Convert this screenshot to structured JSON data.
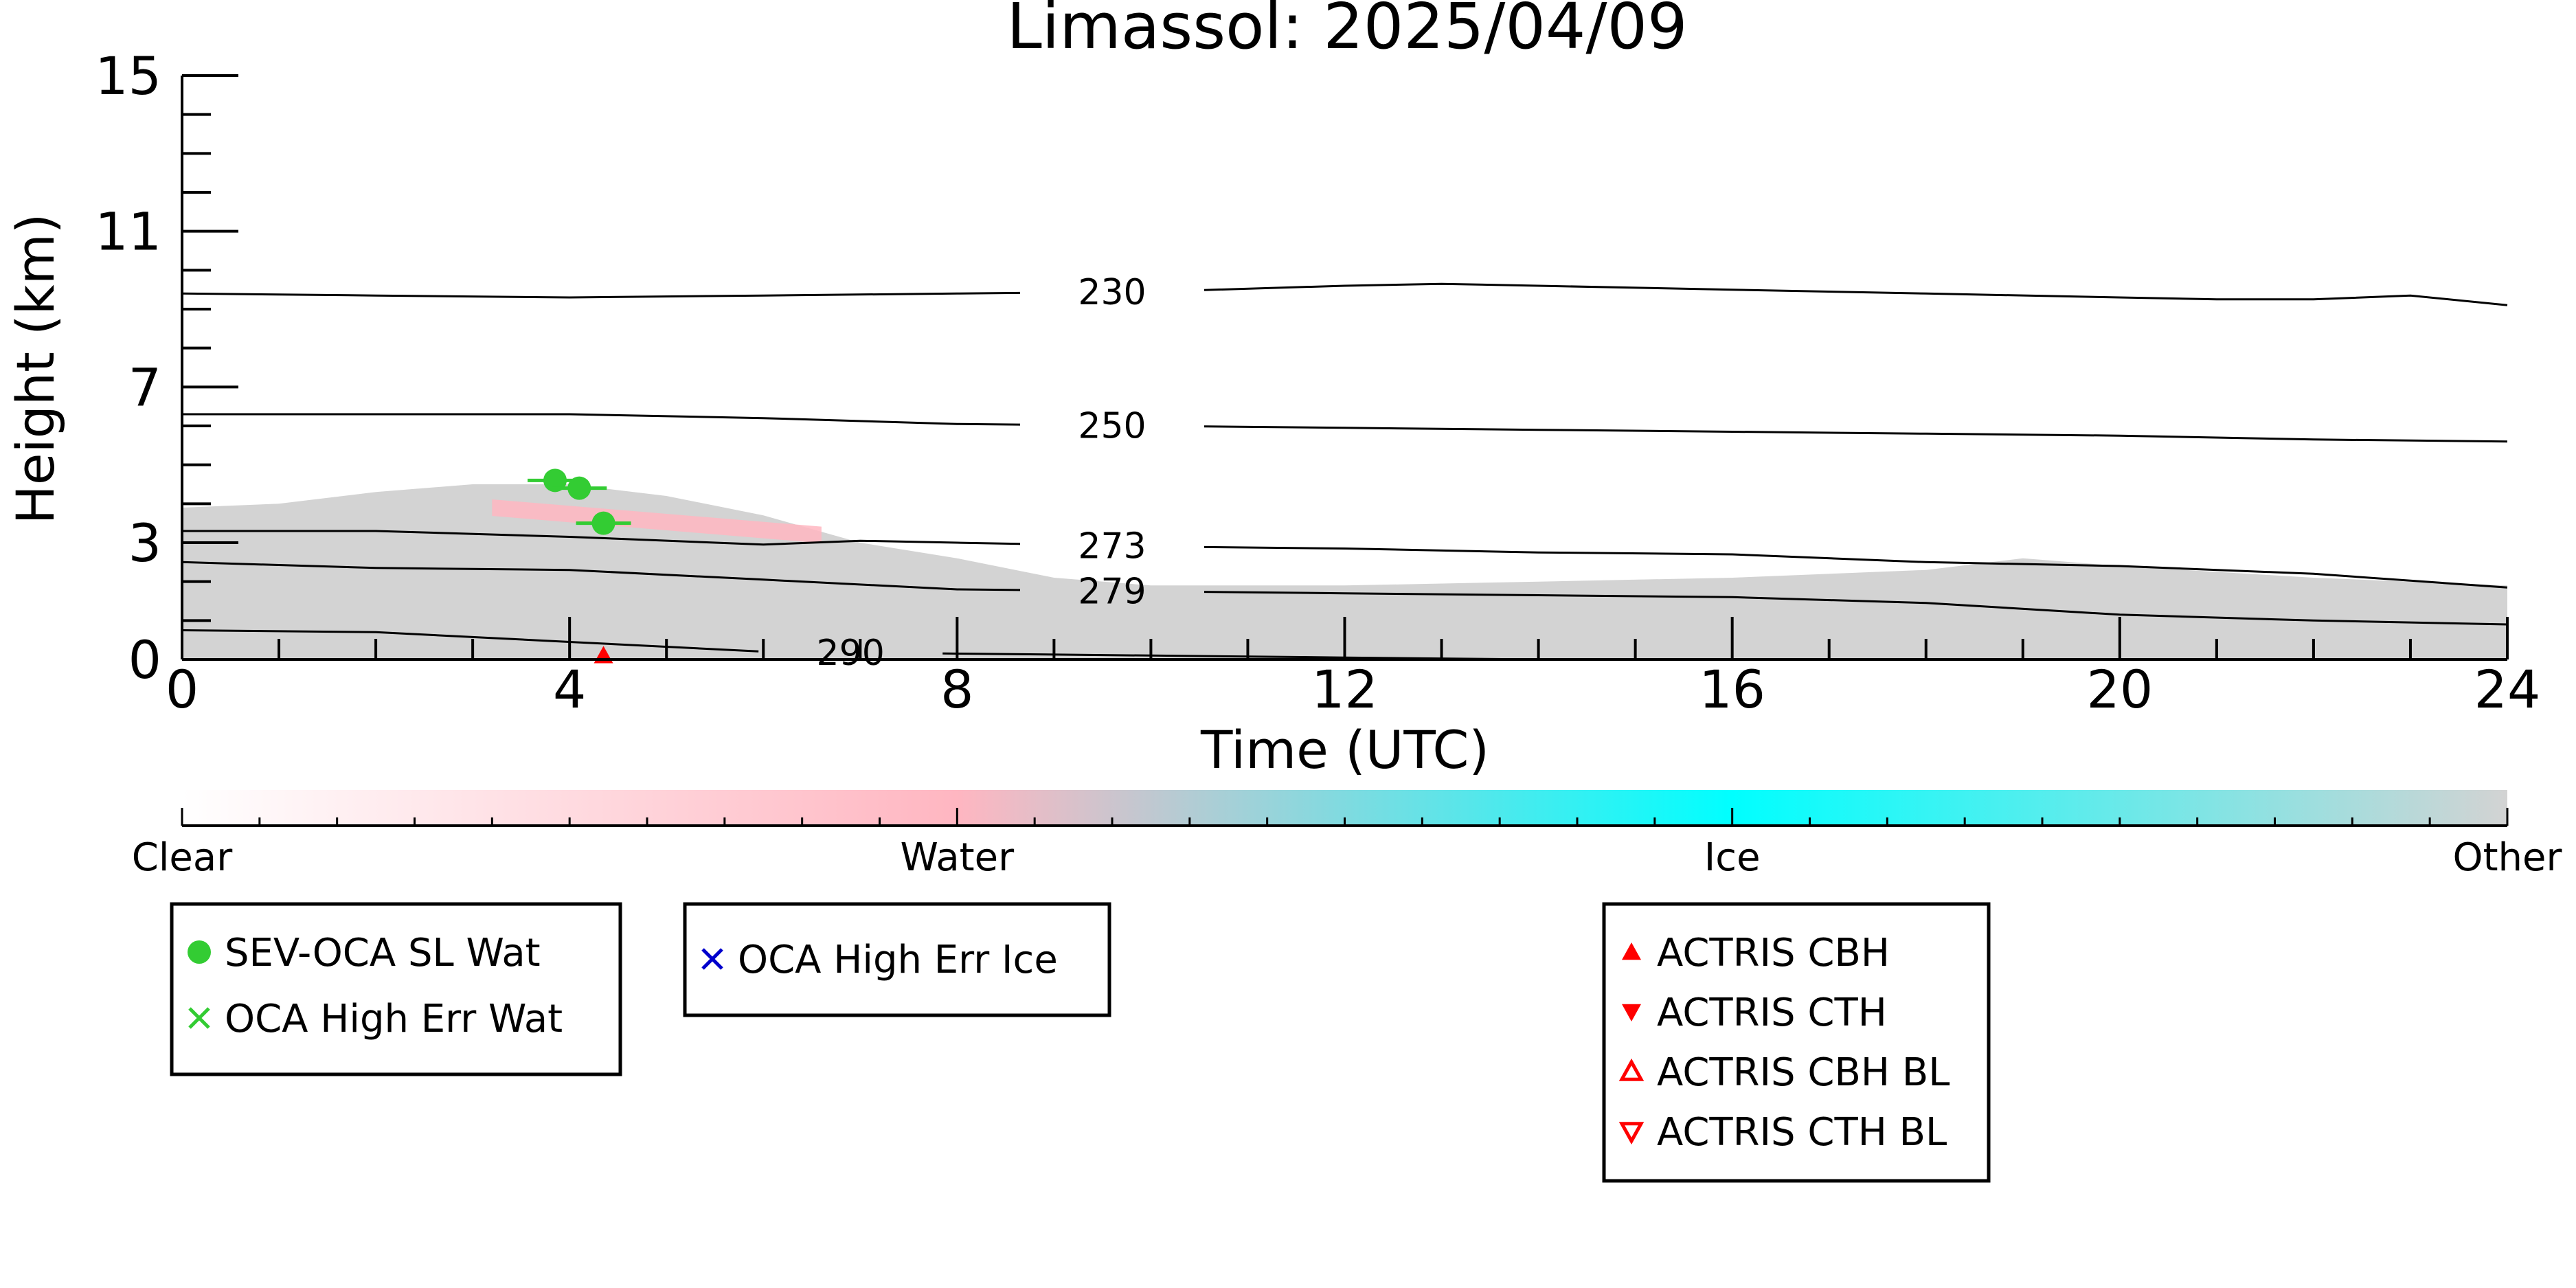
{
  "chart_data": {
    "type": "scatter",
    "title": "Limassol: 2025/04/09",
    "xlabel": "Time (UTC)",
    "ylabel": "Height (km)",
    "xlim": [
      0,
      24
    ],
    "ylim": [
      0,
      15
    ],
    "x_ticks": [
      0,
      4,
      8,
      12,
      16,
      20,
      24
    ],
    "y_ticks": [
      0,
      3,
      7,
      11,
      15
    ],
    "grid": false,
    "background_cloud_region": {
      "label": "Other",
      "color": "#d3d3d3",
      "top_profile": [
        {
          "x": 0,
          "y": 3.9
        },
        {
          "x": 1,
          "y": 4.0
        },
        {
          "x": 2,
          "y": 4.3
        },
        {
          "x": 3,
          "y": 4.5
        },
        {
          "x": 4,
          "y": 4.5
        },
        {
          "x": 5,
          "y": 4.2
        },
        {
          "x": 6,
          "y": 3.7
        },
        {
          "x": 7,
          "y": 3.0
        },
        {
          "x": 8,
          "y": 2.6
        },
        {
          "x": 9,
          "y": 2.1
        },
        {
          "x": 10,
          "y": 1.9
        },
        {
          "x": 12,
          "y": 1.9
        },
        {
          "x": 14,
          "y": 2.0
        },
        {
          "x": 16,
          "y": 2.1
        },
        {
          "x": 18,
          "y": 2.3
        },
        {
          "x": 19,
          "y": 2.6
        },
        {
          "x": 20,
          "y": 2.4
        },
        {
          "x": 22,
          "y": 2.1
        },
        {
          "x": 24,
          "y": 1.9
        }
      ]
    },
    "water_cloud_region": {
      "label": "Water",
      "color": "#ffb6c1",
      "x_range": [
        3.2,
        6.6
      ],
      "y_center": [
        3.9,
        3.2
      ]
    },
    "temperature_contours": [
      {
        "label": "230",
        "label_x": 9.6,
        "points": [
          {
            "x": 0,
            "y": 9.4
          },
          {
            "x": 2,
            "y": 9.35
          },
          {
            "x": 4,
            "y": 9.3
          },
          {
            "x": 6,
            "y": 9.35
          },
          {
            "x": 8,
            "y": 9.4
          },
          {
            "x": 10,
            "y": 9.45
          },
          {
            "x": 12,
            "y": 9.6
          },
          {
            "x": 13,
            "y": 9.65
          },
          {
            "x": 14,
            "y": 9.6
          },
          {
            "x": 16,
            "y": 9.5
          },
          {
            "x": 18,
            "y": 9.4
          },
          {
            "x": 20,
            "y": 9.3
          },
          {
            "x": 21,
            "y": 9.25
          },
          {
            "x": 22,
            "y": 9.25
          },
          {
            "x": 23,
            "y": 9.35
          },
          {
            "x": 24,
            "y": 9.1
          }
        ]
      },
      {
        "label": "250",
        "label_x": 9.6,
        "points": [
          {
            "x": 0,
            "y": 6.3
          },
          {
            "x": 2,
            "y": 6.3
          },
          {
            "x": 4,
            "y": 6.3
          },
          {
            "x": 6,
            "y": 6.2
          },
          {
            "x": 8,
            "y": 6.05
          },
          {
            "x": 10,
            "y": 6.0
          },
          {
            "x": 12,
            "y": 5.95
          },
          {
            "x": 14,
            "y": 5.9
          },
          {
            "x": 16,
            "y": 5.85
          },
          {
            "x": 18,
            "y": 5.8
          },
          {
            "x": 20,
            "y": 5.75
          },
          {
            "x": 22,
            "y": 5.65
          },
          {
            "x": 24,
            "y": 5.6
          }
        ]
      },
      {
        "label": "273",
        "label_x": 9.6,
        "points": [
          {
            "x": 0,
            "y": 3.3
          },
          {
            "x": 2,
            "y": 3.3
          },
          {
            "x": 4,
            "y": 3.15
          },
          {
            "x": 6,
            "y": 2.95
          },
          {
            "x": 7,
            "y": 3.05
          },
          {
            "x": 8,
            "y": 3.0
          },
          {
            "x": 10,
            "y": 2.9
          },
          {
            "x": 12,
            "y": 2.85
          },
          {
            "x": 14,
            "y": 2.75
          },
          {
            "x": 16,
            "y": 2.7
          },
          {
            "x": 18,
            "y": 2.5
          },
          {
            "x": 20,
            "y": 2.4
          },
          {
            "x": 22,
            "y": 2.2
          },
          {
            "x": 24,
            "y": 1.85
          }
        ]
      },
      {
        "label": "279",
        "label_x": 9.6,
        "points": [
          {
            "x": 0,
            "y": 2.5
          },
          {
            "x": 2,
            "y": 2.35
          },
          {
            "x": 4,
            "y": 2.3
          },
          {
            "x": 6,
            "y": 2.05
          },
          {
            "x": 8,
            "y": 1.8
          },
          {
            "x": 10,
            "y": 1.75
          },
          {
            "x": 12,
            "y": 1.7
          },
          {
            "x": 14,
            "y": 1.65
          },
          {
            "x": 16,
            "y": 1.6
          },
          {
            "x": 18,
            "y": 1.45
          },
          {
            "x": 20,
            "y": 1.15
          },
          {
            "x": 22,
            "y": 1.0
          },
          {
            "x": 24,
            "y": 0.9
          }
        ]
      },
      {
        "label": "290",
        "label_x": 6.9,
        "points": [
          {
            "x": 0,
            "y": 0.75
          },
          {
            "x": 2,
            "y": 0.7
          },
          {
            "x": 4,
            "y": 0.45
          },
          {
            "x": 6,
            "y": 0.2
          },
          {
            "x": 8,
            "y": 0.15
          },
          {
            "x": 10,
            "y": 0.1
          },
          {
            "x": 12,
            "y": 0.05
          },
          {
            "x": 14,
            "y": 0.0
          }
        ]
      }
    ],
    "series": [
      {
        "name": "SEV-OCA SL Wat",
        "marker": "circle",
        "color": "#33cc33",
        "points": [
          {
            "x": 3.85,
            "y": 4.6
          },
          {
            "x": 4.1,
            "y": 4.4
          },
          {
            "x": 4.35,
            "y": 3.5
          }
        ]
      },
      {
        "name": "OCA High Err Wat",
        "marker": "x",
        "color": "#33cc33",
        "points": []
      },
      {
        "name": "OCA High Err Ice",
        "marker": "x",
        "color": "#0000cc",
        "points": []
      },
      {
        "name": "ACTRIS CBH",
        "marker": "triangle-up",
        "color": "#ff0000",
        "points": [
          {
            "x": 4.35,
            "y": 0.1
          }
        ]
      },
      {
        "name": "ACTRIS CTH",
        "marker": "triangle-down",
        "color": "#ff0000",
        "points": []
      },
      {
        "name": "ACTRIS CBH BL",
        "marker": "triangle-up-open",
        "color": "#ff0000",
        "points": []
      },
      {
        "name": "ACTRIS CTH BL",
        "marker": "triangle-down-open",
        "color": "#ff0000",
        "points": []
      }
    ],
    "colorbar": {
      "labels": [
        "Clear",
        "Water",
        "Ice",
        "Other"
      ],
      "stops": [
        "#ffffff",
        "#ffb6c1",
        "#00ffff",
        "#d3d3d3"
      ]
    },
    "legend_groups": [
      [
        "SEV-OCA SL Wat",
        "OCA High Err Wat"
      ],
      [
        "OCA High Err Ice"
      ],
      [
        "ACTRIS CBH",
        "ACTRIS CTH",
        "ACTRIS CBH BL",
        "ACTRIS CTH BL"
      ]
    ],
    "legend_placement": "bottom"
  }
}
